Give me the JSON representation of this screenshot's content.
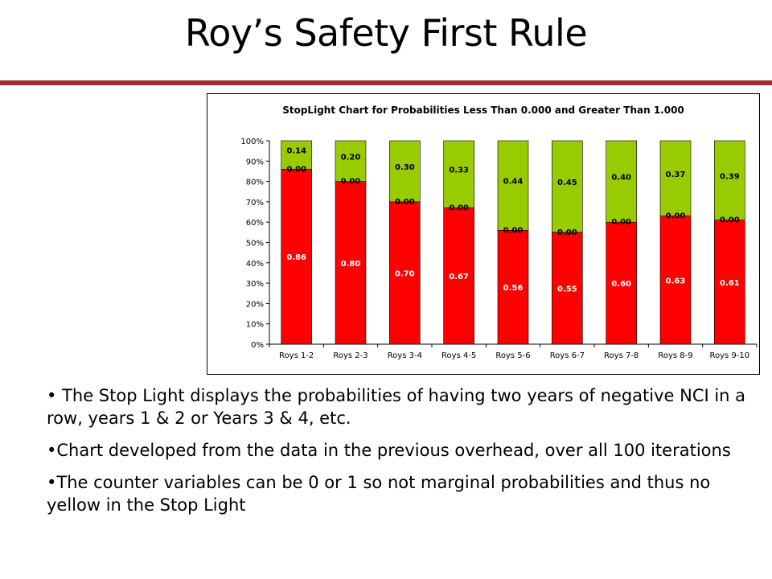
{
  "slide": {
    "title": "Roy’s Safety First Rule",
    "bullets": [
      "• The Stop Light displays the probabilities of having two years of negative NCI in a row, years 1 & 2 or Years 3 & 4, etc.",
      "•Chart developed from the data in the previous overhead, over all 100 iterations",
      "•The counter variables can be 0 or 1 so not marginal probabilities and thus no yellow in the Stop Light"
    ]
  },
  "chart_data": {
    "type": "bar",
    "stacked": true,
    "title": "StopLight Chart for Probabilities Less Than 0.000 and Greater Than 1.000",
    "categories": [
      "Roys 1-2",
      "Roys 2-3",
      "Roys 3-4",
      "Roys 4-5",
      "Roys 5-6",
      "Roys 6-7",
      "Roys 7-8",
      "Roys 8-9",
      "Roys 9-10"
    ],
    "series": [
      {
        "color": "#ff0000",
        "label_color": "#ffffff",
        "values": [
          0.86,
          0.8,
          0.7,
          0.67,
          0.56,
          0.55,
          0.6,
          0.63,
          0.61
        ],
        "labels": [
          "0.86",
          "0.80",
          "0.70",
          "0.67",
          "0.56",
          "0.55",
          "0.60",
          "0.63",
          "0.61"
        ]
      },
      {
        "color": "#ffff00",
        "label_color": "#000000",
        "values": [
          0.0,
          0.0,
          0.0,
          0.0,
          0.0,
          0.0,
          0.0,
          0.0,
          0.0
        ],
        "labels": [
          "0.00",
          "0.00",
          "0.00",
          "0.00",
          "0.00",
          "0.00",
          "0.00",
          "0.00",
          "0.00"
        ]
      },
      {
        "color": "#99cc00",
        "label_color": "#000000",
        "values": [
          0.14,
          0.2,
          0.3,
          0.33,
          0.44,
          0.45,
          0.4,
          0.37,
          0.39
        ],
        "labels": [
          "0.14",
          "0.20",
          "0.30",
          "0.33",
          "0.44",
          "0.45",
          "0.40",
          "0.37",
          "0.39"
        ]
      }
    ],
    "yticks": [
      "0%",
      "10%",
      "20%",
      "30%",
      "40%",
      "50%",
      "60%",
      "70%",
      "80%",
      "90%",
      "100%"
    ],
    "ylim": [
      0,
      1
    ],
    "grid": false,
    "legend": "none"
  }
}
